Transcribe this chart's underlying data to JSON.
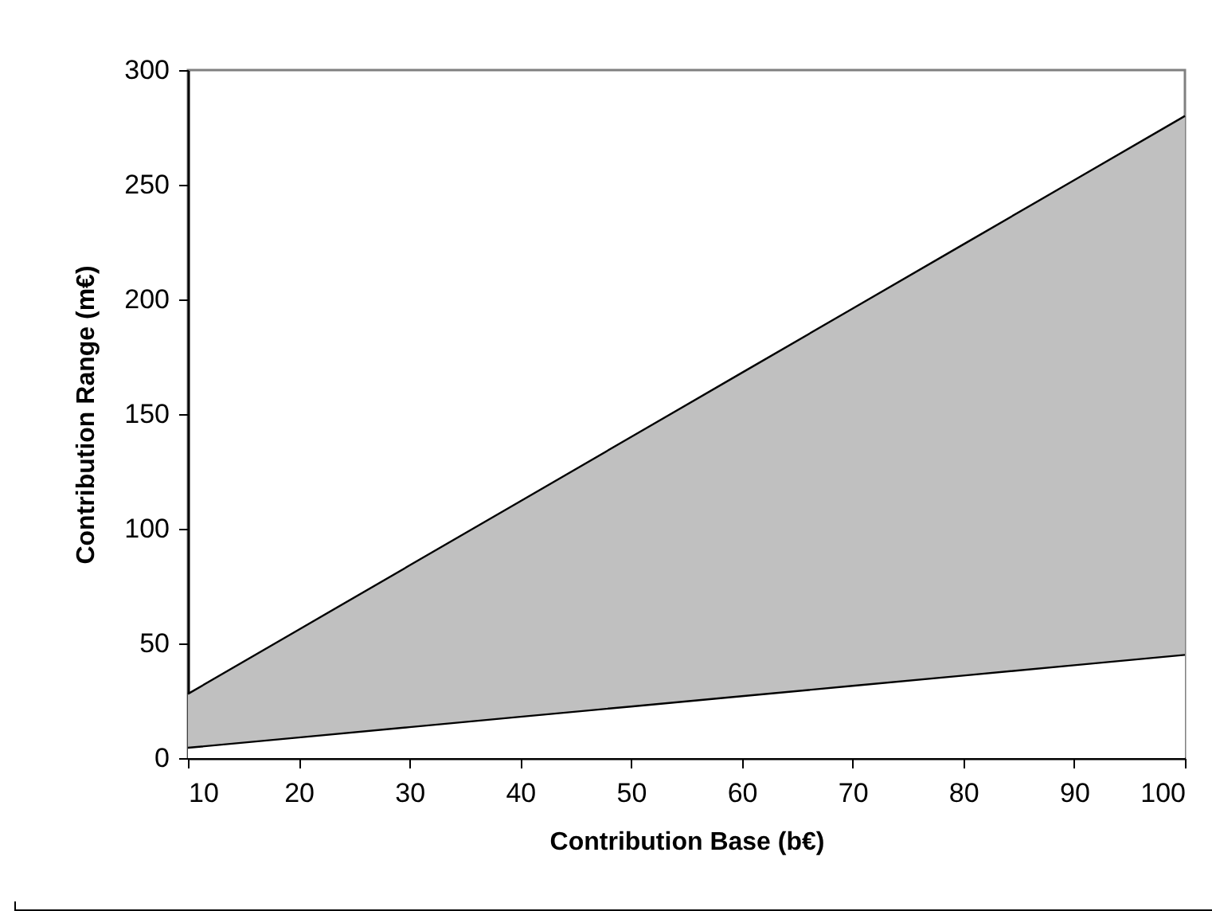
{
  "chart_data": {
    "type": "area",
    "stacked": true,
    "xlabel": "Contribution Base (b€)",
    "ylabel": "Contribution Range (m€)",
    "x": [
      10,
      20,
      30,
      40,
      50,
      60,
      70,
      80,
      90,
      100
    ],
    "series": [
      {
        "color": "#ffffff",
        "values": [
          4.5,
          9,
          13.5,
          18,
          22.5,
          27,
          31.5,
          36,
          40.5,
          45
        ]
      },
      {
        "color": "#c0c0c0",
        "values": [
          23.5,
          47,
          70.5,
          94,
          117.5,
          141,
          164.5,
          188,
          211.5,
          235
        ]
      }
    ],
    "xlim": [
      10,
      100
    ],
    "xticks": [
      10,
      20,
      30,
      40,
      50,
      60,
      70,
      80,
      90,
      100
    ],
    "ylim": [
      0,
      300
    ],
    "yticks": [
      0,
      50,
      100,
      150,
      200,
      250,
      300
    ],
    "grid": false,
    "legend": false
  }
}
